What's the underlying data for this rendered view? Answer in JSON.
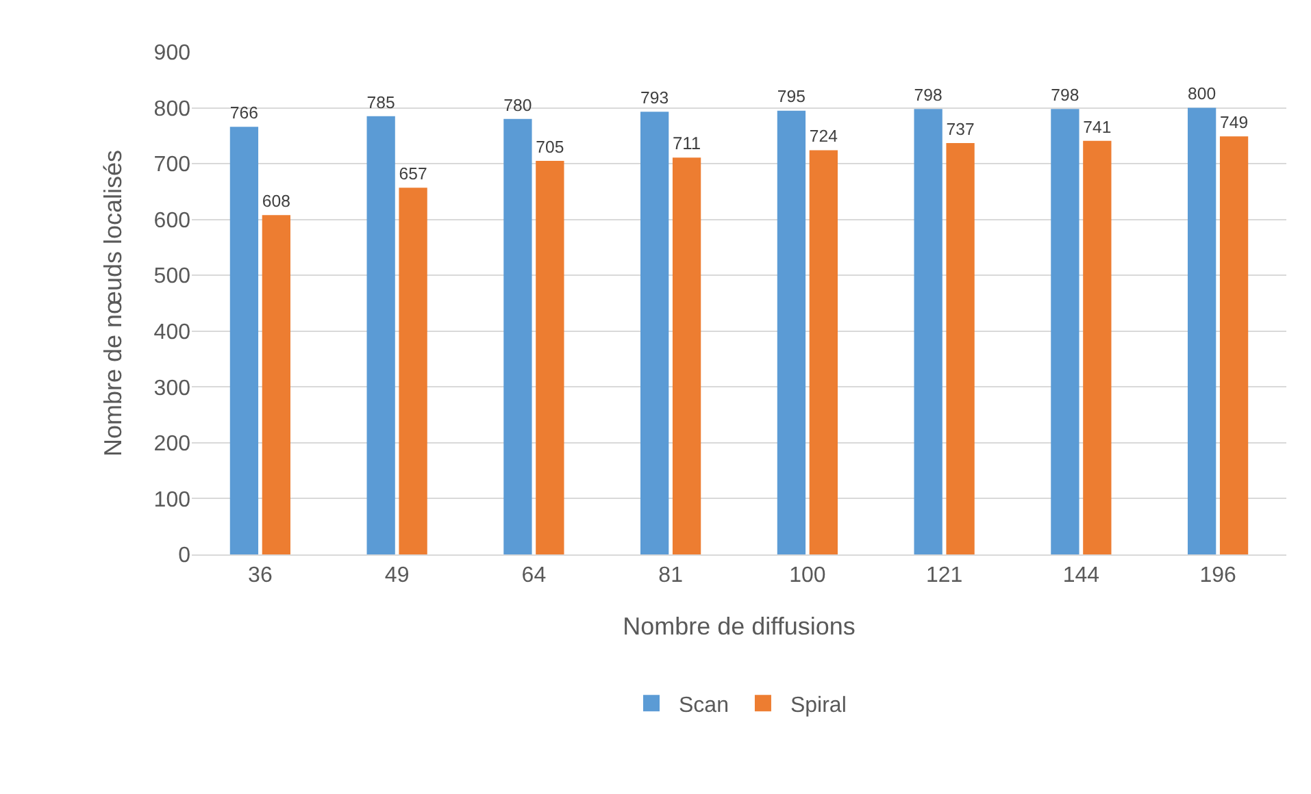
{
  "chart_data": {
    "type": "bar",
    "xlabel": "Nombre de diffusions",
    "ylabel": "Nombre de nœuds localisés",
    "categories": [
      "36",
      "49",
      "64",
      "81",
      "100",
      "121",
      "144",
      "196"
    ],
    "series": [
      {
        "name": "Scan",
        "color": "#5b9bd5",
        "values": [
          766,
          785,
          780,
          793,
          795,
          798,
          798,
          800
        ]
      },
      {
        "name": "Spiral",
        "color": "#ed7d31",
        "values": [
          608,
          657,
          705,
          711,
          724,
          737,
          741,
          749
        ]
      }
    ],
    "ylim": [
      0,
      900
    ],
    "yticks": [
      0,
      100,
      200,
      300,
      400,
      500,
      600,
      700,
      800,
      900
    ],
    "grid": "y",
    "legend": "bottom",
    "data_labels": true
  }
}
